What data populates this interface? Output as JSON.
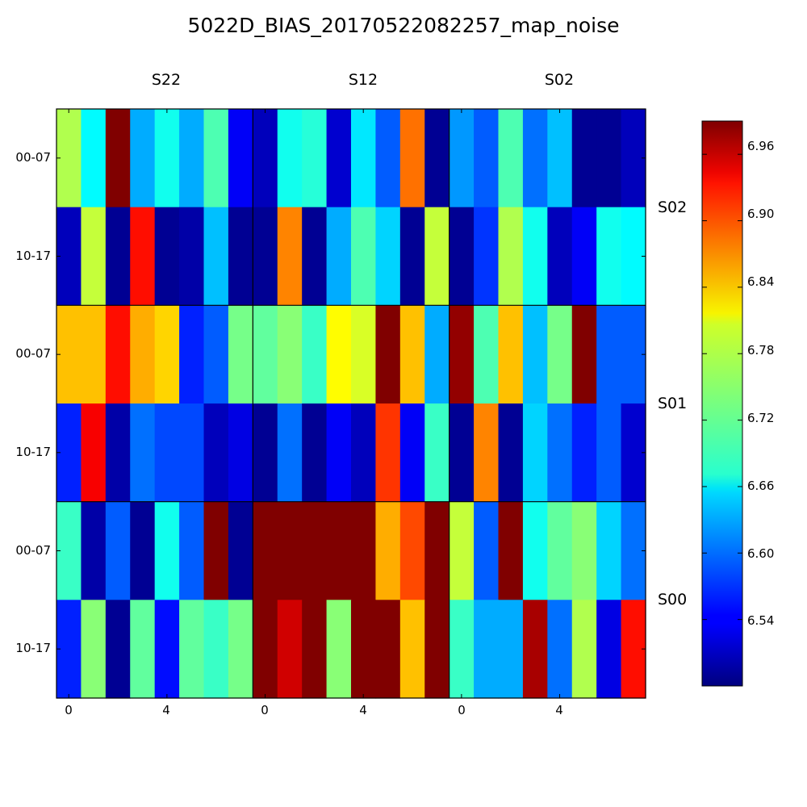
{
  "chart_data": {
    "type": "heatmap",
    "title": "5022D_BIAS_20170522082257_map_noise",
    "column_blocks": [
      "S22",
      "S12",
      "S02"
    ],
    "row_blocks": [
      "S02",
      "S01",
      "S00"
    ],
    "row_tick_labels": [
      "00-07",
      "10-17",
      "00-07",
      "10-17",
      "00-07",
      "10-17"
    ],
    "x_tick_labels": [
      "0",
      "4"
    ],
    "colorbar": {
      "colormap": "jet",
      "range": [
        6.48,
        6.99
      ],
      "ticks": [
        "6.54",
        "6.60",
        "6.66",
        "6.72",
        "6.78",
        "6.84",
        "6.90",
        "6.96"
      ]
    },
    "values": [
      [
        6.76,
        6.67,
        6.99,
        6.63,
        6.68,
        6.63,
        6.71,
        6.54,
        6.51,
        6.68,
        6.69,
        6.52,
        6.66,
        6.59,
        6.87,
        6.49,
        6.62,
        6.59,
        6.71,
        6.6,
        6.64,
        6.49,
        6.49,
        6.51
      ],
      [
        6.51,
        6.77,
        6.49,
        6.92,
        6.49,
        6.5,
        6.64,
        6.49,
        6.49,
        6.86,
        6.49,
        6.63,
        6.71,
        6.65,
        6.49,
        6.77,
        6.49,
        6.57,
        6.76,
        6.68,
        6.51,
        6.54,
        6.68,
        6.67
      ],
      [
        6.83,
        6.83,
        6.92,
        6.84,
        6.82,
        6.56,
        6.59,
        6.73,
        6.72,
        6.74,
        6.7,
        6.8,
        6.78,
        6.99,
        6.83,
        6.63,
        6.98,
        6.71,
        6.83,
        6.64,
        6.73,
        6.99,
        6.59,
        6.59
      ],
      [
        6.56,
        6.93,
        6.5,
        6.6,
        6.58,
        6.58,
        6.51,
        6.53,
        6.49,
        6.6,
        6.49,
        6.54,
        6.51,
        6.9,
        6.54,
        6.7,
        6.49,
        6.86,
        6.49,
        6.65,
        6.6,
        6.56,
        6.59,
        6.52
      ],
      [
        6.7,
        6.5,
        6.59,
        6.49,
        6.68,
        6.59,
        6.99,
        6.49,
        6.99,
        6.99,
        6.99,
        6.99,
        6.99,
        6.84,
        6.89,
        6.99,
        6.77,
        6.59,
        6.99,
        6.68,
        6.72,
        6.74,
        6.65,
        6.6
      ],
      [
        6.56,
        6.74,
        6.49,
        6.72,
        6.55,
        6.72,
        6.7,
        6.73,
        6.99,
        6.95,
        6.99,
        6.74,
        6.99,
        6.99,
        6.83,
        6.99,
        6.7,
        6.63,
        6.63,
        6.97,
        6.6,
        6.76,
        6.53,
        6.92
      ]
    ]
  }
}
